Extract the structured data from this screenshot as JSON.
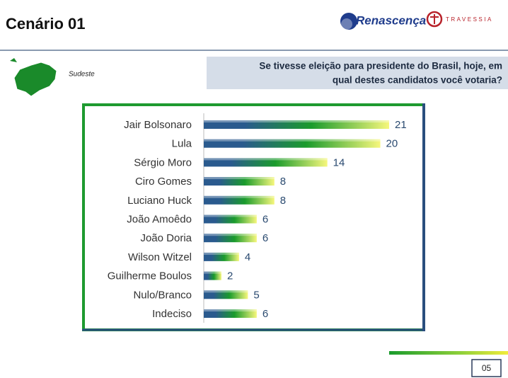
{
  "header": {
    "title": "Cenário 01",
    "logo_left": "Renascença",
    "logo_right": "TRAVESSIA",
    "region": "Sudeste",
    "question": [
      "Se tivesse eleição para presidente do Brasil, hoje, em",
      "qual destes candidatos você votaria?"
    ]
  },
  "chart_data": {
    "type": "bar",
    "orientation": "horizontal",
    "categories": [
      "Jair Bolsonaro",
      "Lula",
      "Sérgio Moro",
      "Ciro Gomes",
      "Luciano Huck",
      "João Amoêdo",
      "João Doria",
      "Wilson Witzel",
      "Guilherme Boulos",
      "Nulo/Branco",
      "Indeciso"
    ],
    "values": [
      21,
      20,
      14,
      8,
      8,
      6,
      6,
      4,
      2,
      5,
      6
    ],
    "colors": [
      "#2a5a8e",
      "#1a9b2c",
      "#f6f77c"
    ]
  },
  "footer": {
    "page_number": "05"
  }
}
